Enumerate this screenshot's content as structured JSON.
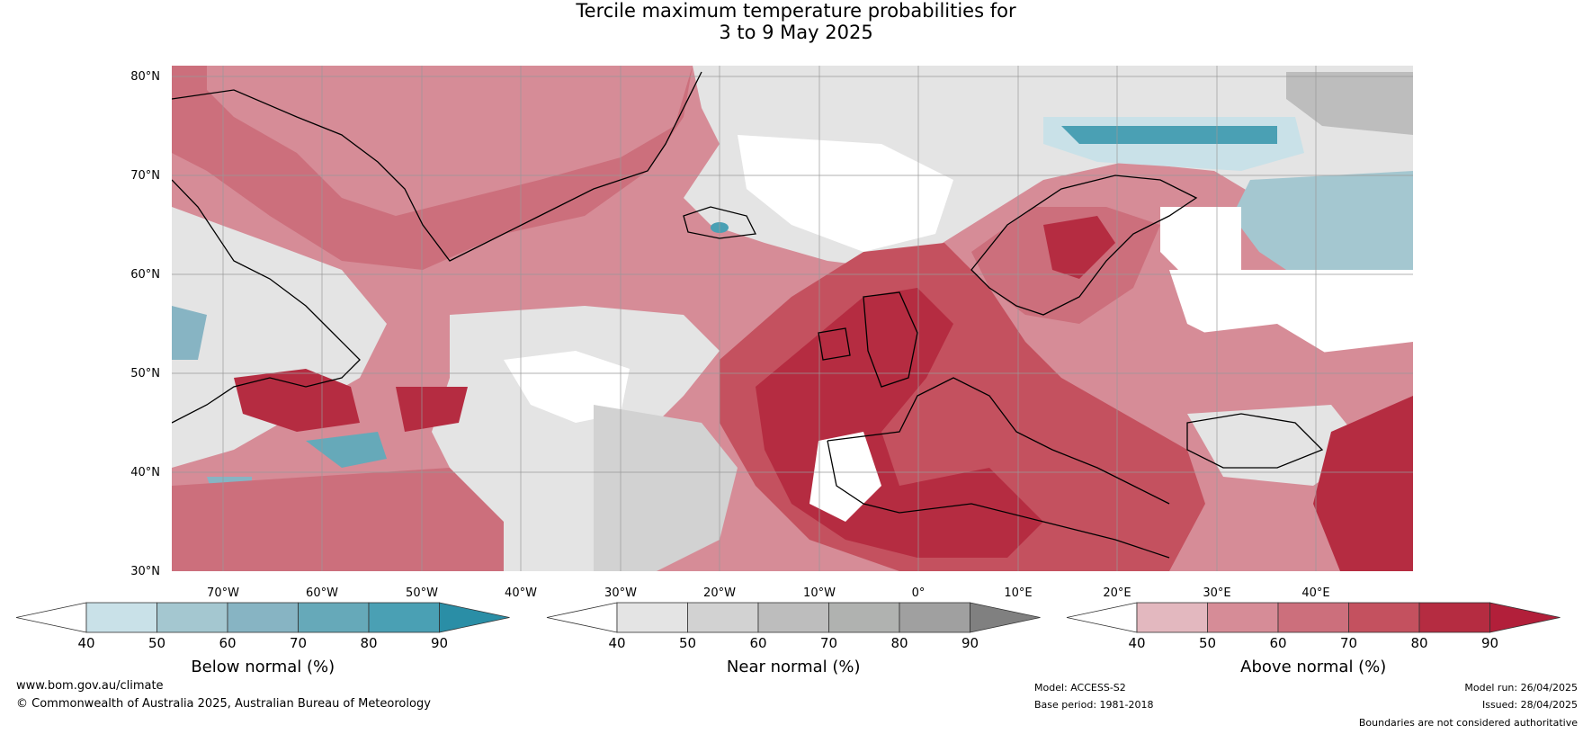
{
  "title": {
    "line1": "Tercile maximum temperature probabilities for",
    "line2": "3 to 9 May 2025"
  },
  "map": {
    "lat_labels": [
      "80°N",
      "70°N",
      "60°N",
      "50°N",
      "40°N",
      "30°N"
    ],
    "lon_labels": [
      "70°W",
      "60°W",
      "50°W",
      "40°W",
      "30°W",
      "20°W",
      "10°W",
      "0°",
      "10°E",
      "20°E",
      "30°E",
      "40°E"
    ],
    "colors": {
      "ocean_white": "#ffffff",
      "above_40": "#e3b8bf",
      "above_50": "#d68c97",
      "above_60": "#cc6f7c",
      "above_70": "#c4515f",
      "above_80": "#b52c41",
      "near_40": "#e4e4e4",
      "near_50": "#d2d2d2",
      "near_60": "#bdbdbd",
      "near_70": "#aaaaaa",
      "below_40": "#c9e1e8",
      "below_50": "#a4c7d0",
      "below_60": "#87b4c3",
      "below_70": "#66a9b9",
      "below_80": "#4aa0b4",
      "coast": "#000000",
      "border": "#888888"
    }
  },
  "colorbars": [
    {
      "label": "Below normal (%)",
      "ticks": [
        "40",
        "50",
        "60",
        "70",
        "80",
        "90"
      ],
      "colors": [
        "#ffffff",
        "#c9e1e8",
        "#a4c7d0",
        "#87b4c3",
        "#66a9b9",
        "#4aa0b4",
        "#2a8ea6"
      ]
    },
    {
      "label": "Near normal (%)",
      "ticks": [
        "40",
        "50",
        "60",
        "70",
        "80",
        "90"
      ],
      "colors": [
        "#ffffff",
        "#e4e4e4",
        "#d2d2d2",
        "#bdbdbd",
        "#b0b2b0",
        "#a0a0a0",
        "#808080"
      ]
    },
    {
      "label": "Above normal (%)",
      "ticks": [
        "40",
        "50",
        "60",
        "70",
        "80",
        "90"
      ],
      "colors": [
        "#ffffff",
        "#e3b8bf",
        "#d68c97",
        "#cc6f7c",
        "#c4515f",
        "#b52c41",
        "#b21f3a"
      ]
    }
  ],
  "footer": {
    "website": "www.bom.gov.au/climate",
    "copyright": "© Commonwealth of Australia 2025, Australian Bureau of Meteorology",
    "model": "Model: ACCESS-S2",
    "base_period": "Base period: 1981-2018",
    "model_run": "Model run: 26/04/2025",
    "issued": "Issued: 28/04/2025",
    "boundaries": "Boundaries are not considered authoritative"
  }
}
